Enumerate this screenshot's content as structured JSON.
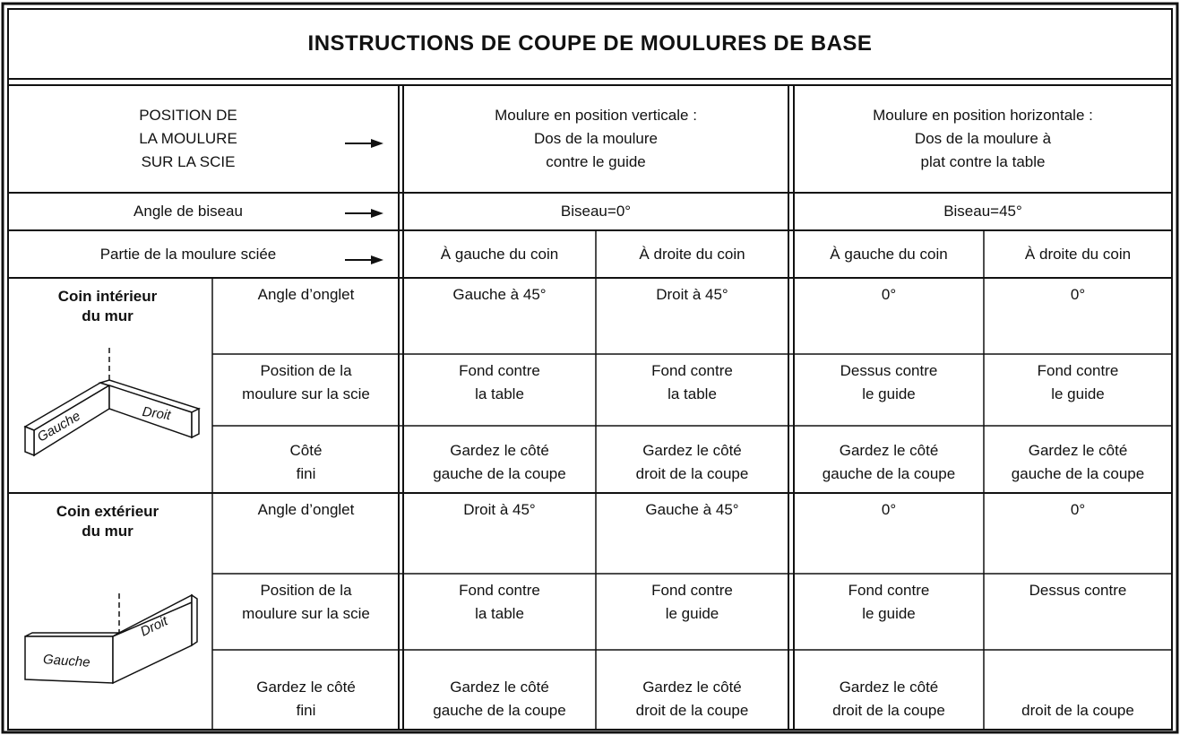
{
  "title": "INSTRUCTIONS DE COUPE DE MOULURES DE BASE",
  "header": {
    "label": "POSITION DE\nLA MOULURE\nSUR LA SCIE",
    "vertical": "Moulure en position verticale :\nDos de la moulure\ncontre le guide",
    "horizontal": "Moulure en position horizontale :\nDos de la moulure à\nplat contre la table"
  },
  "bevel": {
    "label": "Angle de biseau",
    "vertical": "Biseau=0°",
    "horizontal": "Biseau=45°"
  },
  "cut_side": {
    "label": "Partie de la moulure sciée",
    "values": [
      "À gauche du coin",
      "À droite du coin",
      "À gauche du coin",
      "À droite du coin"
    ]
  },
  "sections": [
    {
      "title": "Coin intérieur\ndu mur",
      "diagram": {
        "left": "Gauche",
        "right": "Droit"
      },
      "rows": [
        {
          "label": "Angle d’onglet",
          "values": [
            "Gauche à 45°",
            "Droit à 45°",
            "0°",
            "0°"
          ]
        },
        {
          "label": "Position de la\nmoulure sur la scie",
          "values": [
            "Fond contre\nla table",
            "Fond contre\nla table",
            "Dessus contre\nle guide",
            "Fond contre\nle guide"
          ]
        },
        {
          "label": "Côté\nfini",
          "values": [
            "Gardez le côté\ngauche de la coupe",
            "Gardez le côté\ndroit de la coupe",
            "Gardez le côté\ngauche de la coupe",
            "Gardez le côté\ngauche de la coupe"
          ]
        }
      ]
    },
    {
      "title": "Coin extérieur\ndu mur",
      "diagram": {
        "left": "Gauche",
        "right": "Droit"
      },
      "rows": [
        {
          "label": "Angle d’onglet",
          "values": [
            "Droit à 45°",
            "Gauche à 45°",
            "0°",
            "0°"
          ]
        },
        {
          "label": "Position de la\nmoulure sur la scie",
          "values": [
            "Fond contre\nla table",
            "Fond contre\nle guide",
            "Fond contre\nle guide",
            "Dessus contre"
          ]
        },
        {
          "label": "Gardez le côté\nfini",
          "values": [
            "Gardez le côté\ngauche de la coupe",
            "Gardez le côté\ndroit de la coupe",
            "Gardez le côté\ndroit de la coupe",
            "droit de la coupe"
          ]
        }
      ]
    }
  ]
}
